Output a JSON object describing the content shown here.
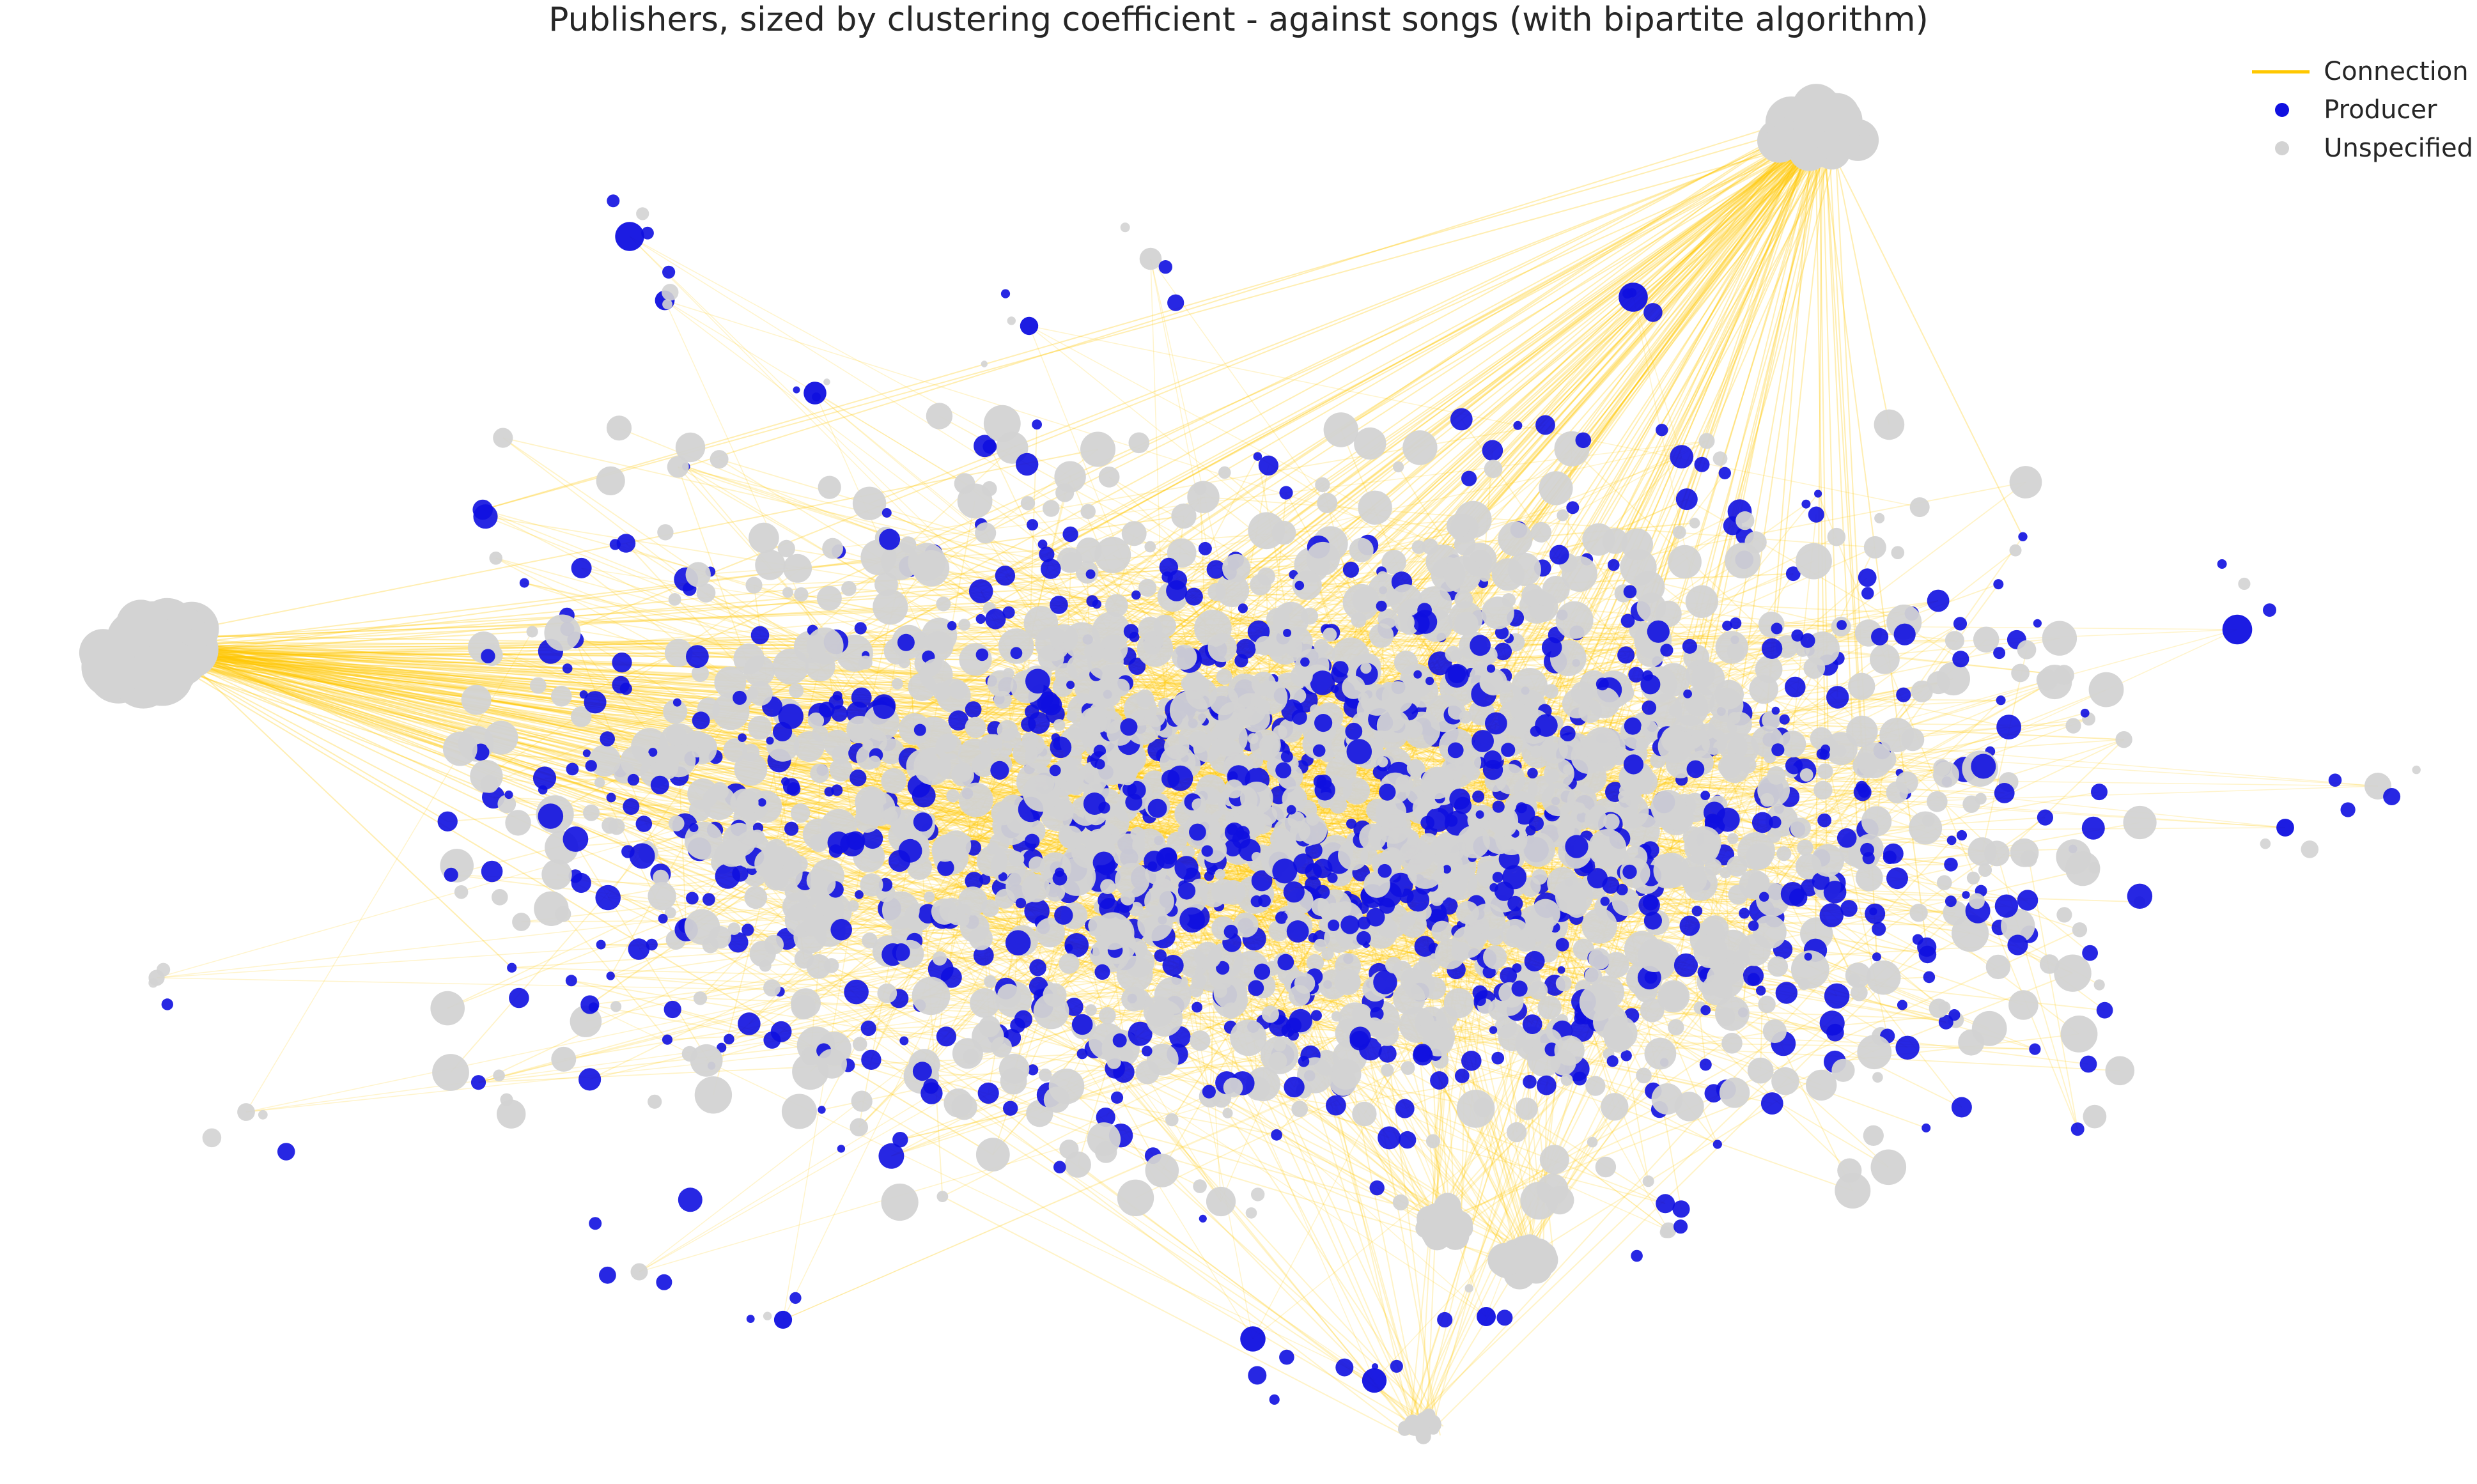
{
  "title": "Publishers, sized by clustering coefficient - against songs (with bipartite algorithm)",
  "legend": {
    "connection": {
      "label": "Connection",
      "color": "#ffc800"
    },
    "producer": {
      "label": "Producer",
      "color": "#1010e0"
    },
    "unspecified": {
      "label": "Unspecified",
      "color": "#d3d3d3"
    }
  }
}
